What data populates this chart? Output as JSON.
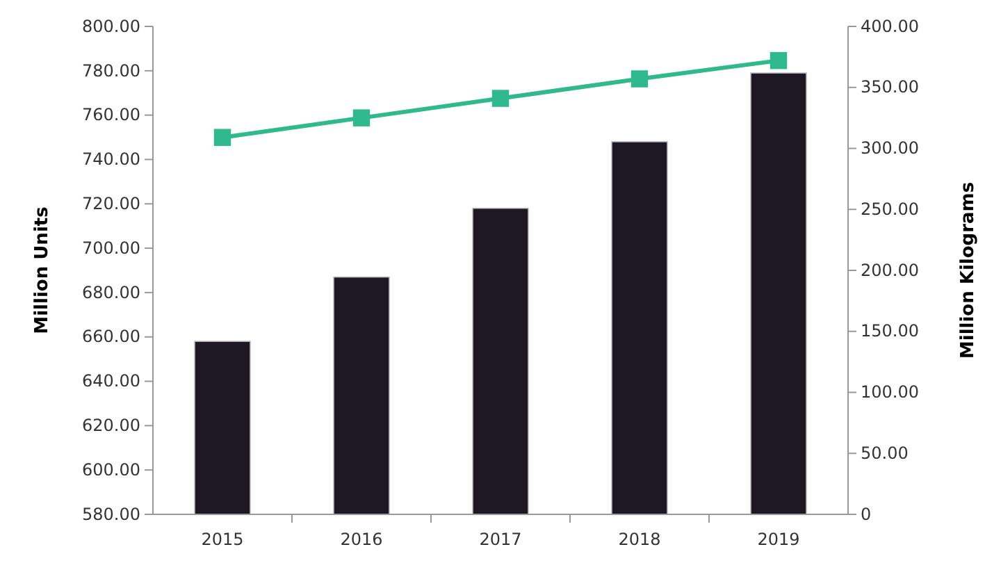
{
  "chart_data": {
    "type": "bar",
    "ylabel": "Million Units",
    "y2label": "Million Kilograms",
    "categories": [
      "2015",
      "2016",
      "2017",
      "2018",
      "2019"
    ],
    "series": [
      {
        "color": "#1e1824",
        "values": [
          658,
          687,
          718,
          748,
          779
        ]
      },
      {
        "type": "line",
        "axis": "y2",
        "color": "#2fb98c",
        "marker": "square",
        "values": [
          309,
          325,
          341,
          357,
          372
        ]
      }
    ],
    "ylim": [
      580,
      800
    ],
    "yticks": [
      {
        "value": 580,
        "label": "580.00"
      },
      {
        "value": 600,
        "label": "600.00"
      },
      {
        "value": 620,
        "label": "620.00"
      },
      {
        "value": 640,
        "label": "640.00"
      },
      {
        "value": 660,
        "label": "660.00"
      },
      {
        "value": 680,
        "label": "680.00"
      },
      {
        "value": 700,
        "label": "700.00"
      },
      {
        "value": 720,
        "label": "720.00"
      },
      {
        "value": 740,
        "label": "740.00"
      },
      {
        "value": 760,
        "label": "760.00"
      },
      {
        "value": 780,
        "label": "780.00"
      },
      {
        "value": 800,
        "label": "800.00"
      }
    ],
    "y2lim": [
      0,
      400
    ],
    "y2ticks": [
      0,
      {
        "value": 50,
        "label": "50.00"
      },
      {
        "value": 100,
        "label": "100.00"
      },
      {
        "value": 150,
        "label": "150.00"
      },
      {
        "value": 200,
        "label": "200.00"
      },
      {
        "value": 250,
        "label": "250.00"
      },
      {
        "value": 300,
        "label": "300.00"
      },
      {
        "value": 350,
        "label": "350.00"
      },
      {
        "value": 400,
        "label": "400.00"
      }
    ],
    "grid": false
  }
}
